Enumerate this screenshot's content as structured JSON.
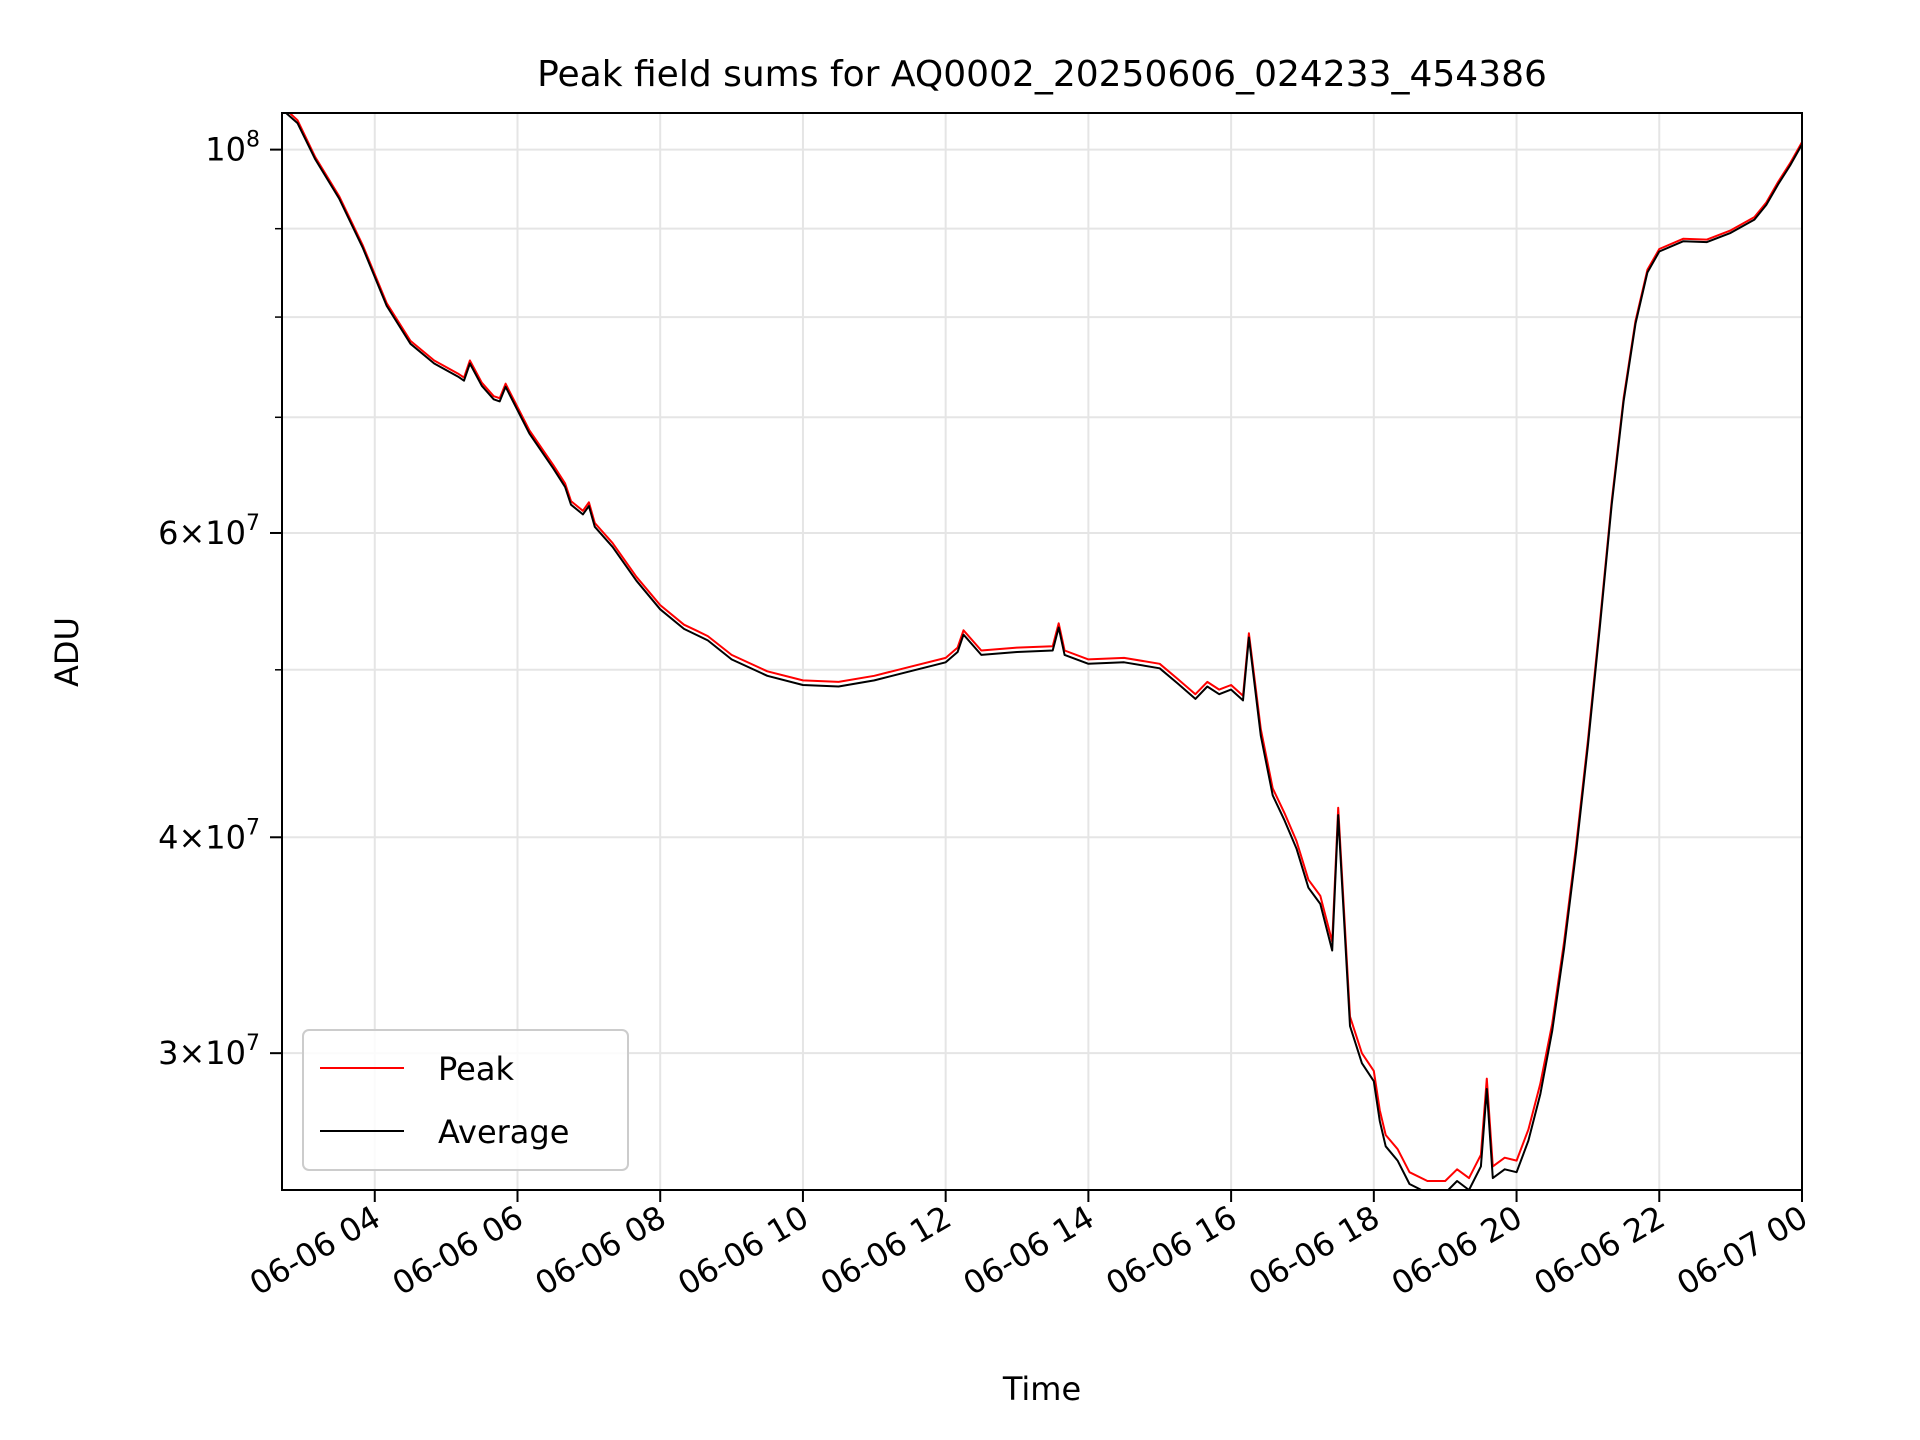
{
  "chart_data": {
    "type": "line",
    "title": "Peak field sums for AQ0002_20250606_024233_454386",
    "xlabel": "Time",
    "ylabel": "ADU",
    "y_scale": "log",
    "ylim": [
      25000000,
      105000000
    ],
    "xlim": [
      "2025-06-06 02:42",
      "2025-06-07 00:00"
    ],
    "x_ticks": [
      {
        "label": "06-06 04",
        "value": "2025-06-06 04:00"
      },
      {
        "label": "06-06 06",
        "value": "2025-06-06 06:00"
      },
      {
        "label": "06-06 08",
        "value": "2025-06-06 08:00"
      },
      {
        "label": "06-06 10",
        "value": "2025-06-06 10:00"
      },
      {
        "label": "06-06 12",
        "value": "2025-06-06 12:00"
      },
      {
        "label": "06-06 14",
        "value": "2025-06-06 14:00"
      },
      {
        "label": "06-06 16",
        "value": "2025-06-06 16:00"
      },
      {
        "label": "06-06 18",
        "value": "2025-06-06 18:00"
      },
      {
        "label": "06-06 20",
        "value": "2025-06-06 20:00"
      },
      {
        "label": "06-06 22",
        "value": "2025-06-06 22:00"
      },
      {
        "label": "06-07 00",
        "value": "2025-06-07 00:00"
      }
    ],
    "y_ticks": [
      {
        "value": 30000000,
        "mantissa": "3",
        "exp": "7"
      },
      {
        "value": 40000000,
        "mantissa": "4",
        "exp": "7"
      },
      {
        "value": 60000000,
        "mantissa": "6",
        "exp": "7"
      },
      {
        "value": 100000000,
        "mantissa": "",
        "exp": "8"
      }
    ],
    "y_minor_ticks": [
      50000000,
      70000000,
      80000000,
      90000000
    ],
    "grid": true,
    "legend": {
      "position": "lower-left",
      "entries": [
        "Peak",
        "Average"
      ]
    },
    "series": [
      {
        "name": "Peak",
        "color": "#ff0000",
        "x": [
          "2025-06-06 02:42",
          "2025-06-06 02:55",
          "2025-06-06 03:10",
          "2025-06-06 03:30",
          "2025-06-06 03:50",
          "2025-06-06 04:10",
          "2025-06-06 04:30",
          "2025-06-06 04:50",
          "2025-06-06 05:10",
          "2025-06-06 05:15",
          "2025-06-06 05:20",
          "2025-06-06 05:30",
          "2025-06-06 05:40",
          "2025-06-06 05:45",
          "2025-06-06 05:50",
          "2025-06-06 06:10",
          "2025-06-06 06:30",
          "2025-06-06 06:40",
          "2025-06-06 06:45",
          "2025-06-06 06:55",
          "2025-06-06 07:00",
          "2025-06-06 07:05",
          "2025-06-06 07:20",
          "2025-06-06 07:40",
          "2025-06-06 08:00",
          "2025-06-06 08:20",
          "2025-06-06 08:30",
          "2025-06-06 08:40",
          "2025-06-06 09:00",
          "2025-06-06 09:30",
          "2025-06-06 10:00",
          "2025-06-06 10:30",
          "2025-06-06 11:00",
          "2025-06-06 11:30",
          "2025-06-06 12:00",
          "2025-06-06 12:10",
          "2025-06-06 12:15",
          "2025-06-06 12:30",
          "2025-06-06 13:00",
          "2025-06-06 13:30",
          "2025-06-06 13:35",
          "2025-06-06 13:40",
          "2025-06-06 14:00",
          "2025-06-06 14:30",
          "2025-06-06 15:00",
          "2025-06-06 15:15",
          "2025-06-06 15:30",
          "2025-06-06 15:40",
          "2025-06-06 15:50",
          "2025-06-06 16:00",
          "2025-06-06 16:10",
          "2025-06-06 16:15",
          "2025-06-06 16:25",
          "2025-06-06 16:35",
          "2025-06-06 16:45",
          "2025-06-06 16:55",
          "2025-06-06 17:05",
          "2025-06-06 17:15",
          "2025-06-06 17:25",
          "2025-06-06 17:30",
          "2025-06-06 17:40",
          "2025-06-06 17:50",
          "2025-06-06 18:00",
          "2025-06-06 18:05",
          "2025-06-06 18:10",
          "2025-06-06 18:20",
          "2025-06-06 18:30",
          "2025-06-06 18:45",
          "2025-06-06 19:00",
          "2025-06-06 19:10",
          "2025-06-06 19:20",
          "2025-06-06 19:30",
          "2025-06-06 19:35",
          "2025-06-06 19:40",
          "2025-06-06 19:50",
          "2025-06-06 20:00",
          "2025-06-06 20:10",
          "2025-06-06 20:20",
          "2025-06-06 20:30",
          "2025-06-06 20:40",
          "2025-06-06 20:50",
          "2025-06-06 21:00",
          "2025-06-06 21:10",
          "2025-06-06 21:20",
          "2025-06-06 21:30",
          "2025-06-06 21:40",
          "2025-06-06 21:50",
          "2025-06-06 22:00",
          "2025-06-06 22:20",
          "2025-06-06 22:40",
          "2025-06-06 23:00",
          "2025-06-06 23:20",
          "2025-06-06 23:30",
          "2025-06-06 23:40",
          "2025-06-06 23:50",
          "2025-06-07 00:00"
        ],
        "y": [
          106000000,
          104000000,
          99000000,
          94000000,
          88000000,
          81500000,
          77500000,
          75500000,
          74200000,
          73800000,
          75500000,
          73300000,
          72000000,
          71800000,
          73200000,
          68800000,
          65700000,
          64100000,
          62600000,
          61800000,
          62500000,
          60800000,
          59200000,
          56600000,
          54500000,
          53100000,
          52700000,
          52300000,
          51000000,
          49900000,
          49300000,
          49200000,
          49600000,
          50200000,
          50800000,
          51500000,
          52700000,
          51300000,
          51500000,
          51600000,
          53200000,
          51300000,
          50700000,
          50800000,
          50400000,
          49400000,
          48400000,
          49200000,
          48700000,
          49000000,
          48300000,
          52500000,
          46200000,
          42700000,
          41300000,
          39800000,
          37800000,
          37000000,
          34800000,
          41600000,
          31500000,
          30000000,
          29300000,
          27800000,
          26900000,
          26400000,
          25600000,
          25300000,
          25300000,
          25700000,
          25400000,
          26200000,
          29000000,
          25800000,
          26100000,
          26000000,
          27100000,
          28800000,
          31200000,
          34800000,
          39500000,
          45500000,
          53200000,
          62600000,
          71800000,
          79600000,
          85200000,
          87600000,
          88800000,
          88700000,
          89800000,
          91400000,
          93200000,
          95800000,
          98200000,
          101000000
        ]
      },
      {
        "name": "Average",
        "color": "#000000",
        "x": [
          "2025-06-06 02:42",
          "2025-06-06 02:55",
          "2025-06-06 03:10",
          "2025-06-06 03:30",
          "2025-06-06 03:50",
          "2025-06-06 04:10",
          "2025-06-06 04:30",
          "2025-06-06 04:50",
          "2025-06-06 05:10",
          "2025-06-06 05:15",
          "2025-06-06 05:20",
          "2025-06-06 05:30",
          "2025-06-06 05:40",
          "2025-06-06 05:45",
          "2025-06-06 05:50",
          "2025-06-06 06:10",
          "2025-06-06 06:30",
          "2025-06-06 06:40",
          "2025-06-06 06:45",
          "2025-06-06 06:55",
          "2025-06-06 07:00",
          "2025-06-06 07:05",
          "2025-06-06 07:20",
          "2025-06-06 07:40",
          "2025-06-06 08:00",
          "2025-06-06 08:20",
          "2025-06-06 08:30",
          "2025-06-06 08:40",
          "2025-06-06 09:00",
          "2025-06-06 09:30",
          "2025-06-06 10:00",
          "2025-06-06 10:30",
          "2025-06-06 11:00",
          "2025-06-06 11:30",
          "2025-06-06 12:00",
          "2025-06-06 12:10",
          "2025-06-06 12:15",
          "2025-06-06 12:30",
          "2025-06-06 13:00",
          "2025-06-06 13:30",
          "2025-06-06 13:35",
          "2025-06-06 13:40",
          "2025-06-06 14:00",
          "2025-06-06 14:30",
          "2025-06-06 15:00",
          "2025-06-06 15:15",
          "2025-06-06 15:30",
          "2025-06-06 15:40",
          "2025-06-06 15:50",
          "2025-06-06 16:00",
          "2025-06-06 16:10",
          "2025-06-06 16:15",
          "2025-06-06 16:25",
          "2025-06-06 16:35",
          "2025-06-06 16:45",
          "2025-06-06 16:55",
          "2025-06-06 17:05",
          "2025-06-06 17:15",
          "2025-06-06 17:25",
          "2025-06-06 17:30",
          "2025-06-06 17:40",
          "2025-06-06 17:50",
          "2025-06-06 18:00",
          "2025-06-06 18:05",
          "2025-06-06 18:10",
          "2025-06-06 18:20",
          "2025-06-06 18:30",
          "2025-06-06 18:45",
          "2025-06-06 19:00",
          "2025-06-06 19:10",
          "2025-06-06 19:20",
          "2025-06-06 19:30",
          "2025-06-06 19:35",
          "2025-06-06 19:40",
          "2025-06-06 19:50",
          "2025-06-06 20:00",
          "2025-06-06 20:10",
          "2025-06-06 20:20",
          "2025-06-06 20:30",
          "2025-06-06 20:40",
          "2025-06-06 20:50",
          "2025-06-06 21:00",
          "2025-06-06 21:10",
          "2025-06-06 21:20",
          "2025-06-06 21:30",
          "2025-06-06 21:40",
          "2025-06-06 21:50",
          "2025-06-06 22:00",
          "2025-06-06 22:20",
          "2025-06-06 22:40",
          "2025-06-06 23:00",
          "2025-06-06 23:20",
          "2025-06-06 23:30",
          "2025-06-06 23:40",
          "2025-06-06 23:50",
          "2025-06-07 00:00"
        ],
        "y": [
          105500000,
          103600000,
          98700000,
          93700000,
          87700000,
          81200000,
          77200000,
          75200000,
          73900000,
          73500000,
          75200000,
          73000000,
          71700000,
          71500000,
          72900000,
          68500000,
          65400000,
          63800000,
          62300000,
          61500000,
          62200000,
          60500000,
          58900000,
          56300000,
          54200000,
          52800000,
          52400000,
          52000000,
          50700000,
          49600000,
          49000000,
          48900000,
          49300000,
          49900000,
          50500000,
          51200000,
          52400000,
          51000000,
          51200000,
          51300000,
          52900000,
          51000000,
          50400000,
          50500000,
          50100000,
          49100000,
          48100000,
          48900000,
          48400000,
          48700000,
          48000000,
          52200000,
          45800000,
          42300000,
          40900000,
          39400000,
          37400000,
          36600000,
          34400000,
          41200000,
          31100000,
          29600000,
          28900000,
          27400000,
          26500000,
          26000000,
          25200000,
          24900000,
          24900000,
          25300000,
          25000000,
          25800000,
          28600000,
          25400000,
          25700000,
          25600000,
          26700000,
          28400000,
          30900000,
          34500000,
          39200000,
          45200000,
          52900000,
          62300000,
          71500000,
          79300000,
          84900000,
          87300000,
          88500000,
          88400000,
          89500000,
          91100000,
          92900000,
          95500000,
          97900000,
          100700000
        ]
      }
    ]
  }
}
